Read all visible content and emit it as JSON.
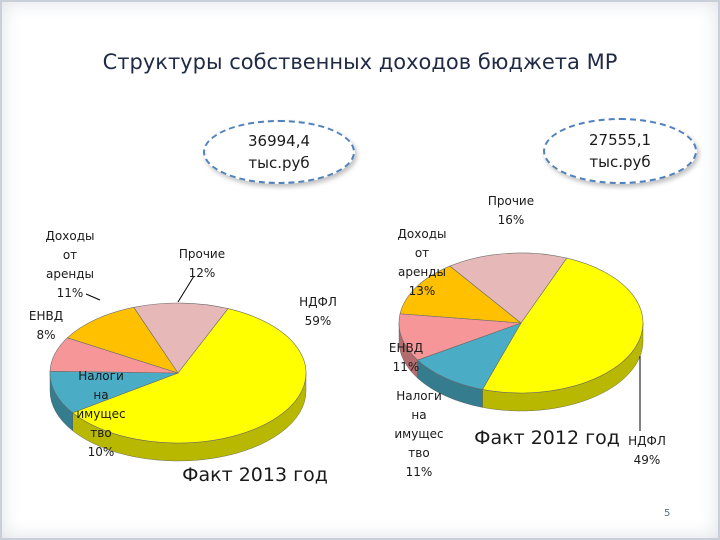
{
  "title": "Структуры собственных доходов бюджета МР",
  "page_number": "5",
  "colors": {
    "ndfl": "#ffff00",
    "imushestvo": "#4bacc6",
    "envd": "#f79698",
    "arenda": "#ffc000",
    "prochie": "#e6b9b8"
  },
  "chart_data": [
    {
      "type": "pie",
      "title": "Факт 2013 год",
      "total_label": [
        "36994,4",
        "тыс.руб"
      ],
      "slices": [
        {
          "label": [
            "НДФЛ",
            "59%"
          ],
          "value": 59,
          "color": "#ffff00"
        },
        {
          "label": [
            "Налоги",
            "на",
            "имущес",
            "тво",
            "10%"
          ],
          "value": 10,
          "color": "#4bacc6"
        },
        {
          "label": [
            "ЕНВД",
            "8%"
          ],
          "value": 8,
          "color": "#f79698"
        },
        {
          "label": [
            "Доходы",
            "от",
            "аренды",
            "11%"
          ],
          "value": 11,
          "color": "#ffc000"
        },
        {
          "label": [
            "Прочие",
            "12%"
          ],
          "value": 12,
          "color": "#e6b9b8"
        }
      ]
    },
    {
      "type": "pie",
      "title": "Факт 2012 год",
      "total_label": [
        "27555,1",
        "тыс.руб"
      ],
      "slices": [
        {
          "label": [
            "НДФЛ",
            "49%"
          ],
          "value": 49,
          "color": "#ffff00"
        },
        {
          "label": [
            "Налоги",
            "на",
            "имущес",
            "тво",
            "11%"
          ],
          "value": 11,
          "color": "#4bacc6"
        },
        {
          "label": [
            "ЕНВД",
            "11%"
          ],
          "value": 11,
          "color": "#f79698"
        },
        {
          "label": [
            "Доходы",
            "от",
            "аренды",
            "13%"
          ],
          "value": 13,
          "color": "#ffc000"
        },
        {
          "label": [
            "Прочие",
            "16%"
          ],
          "value": 16,
          "color": "#e6b9b8"
        }
      ]
    }
  ]
}
